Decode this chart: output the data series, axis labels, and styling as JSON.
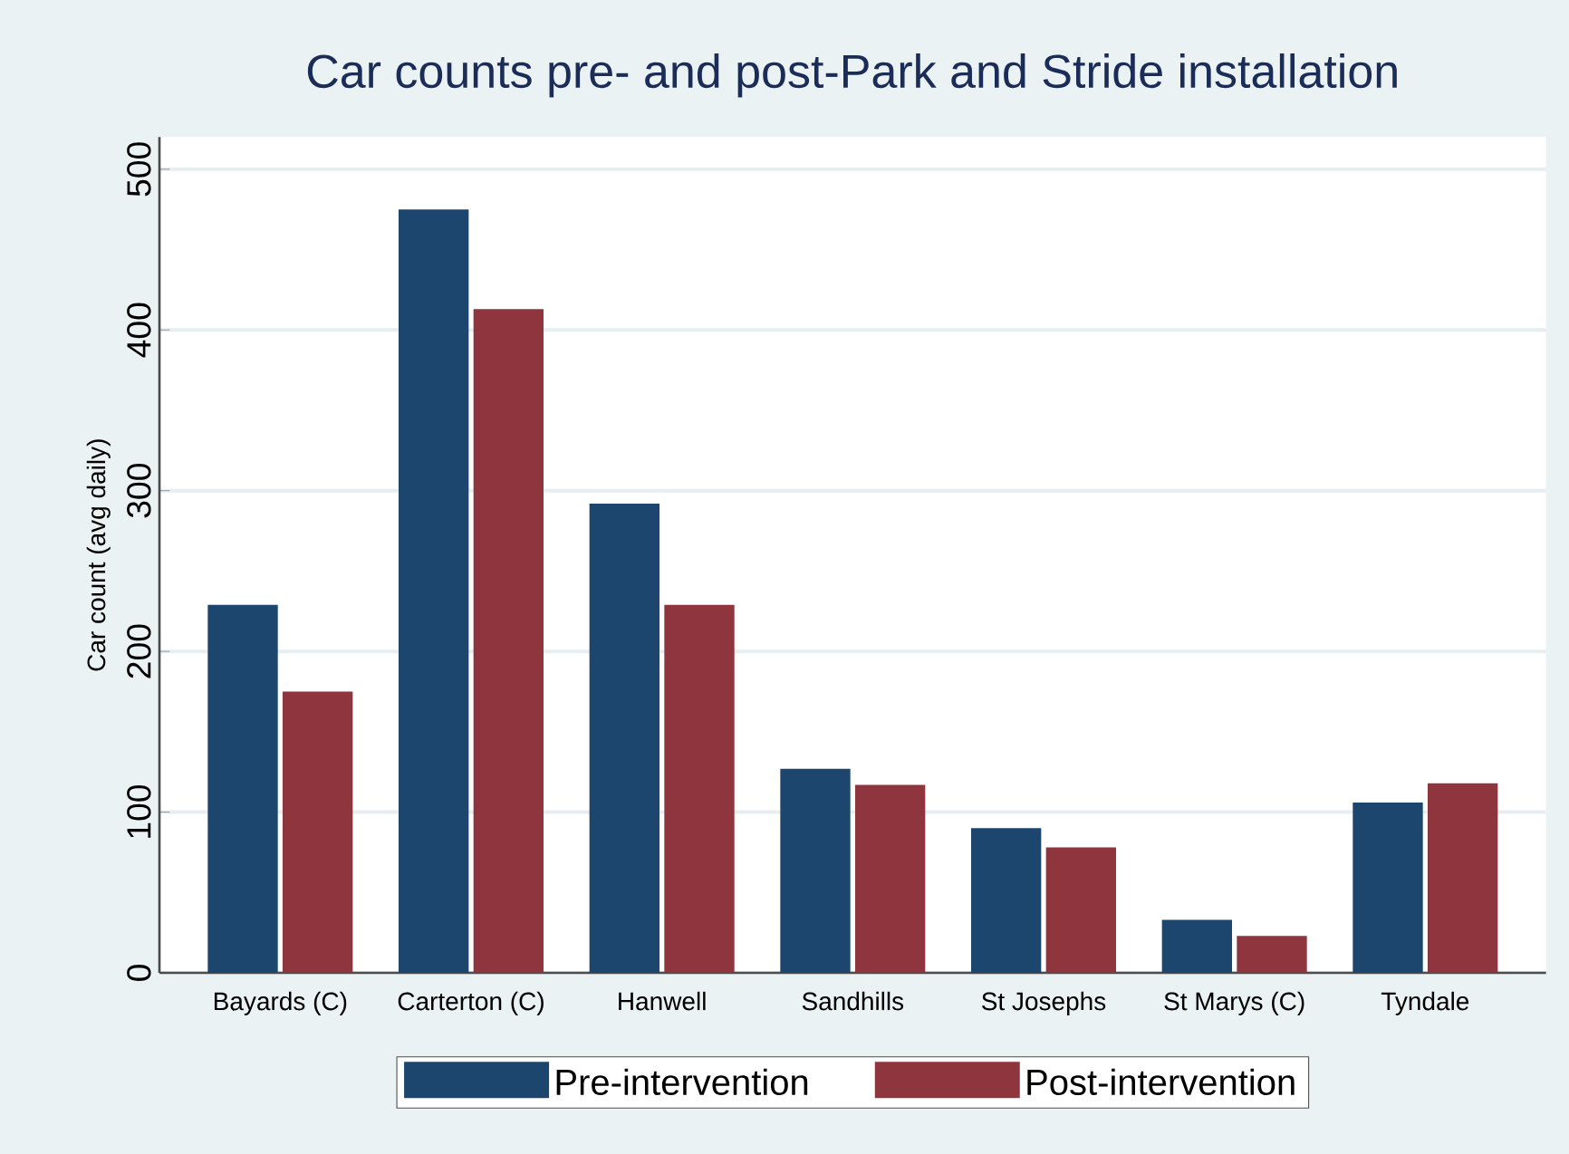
{
  "chart_data": {
    "type": "bar",
    "title": "Car counts pre- and post-Park and Stride installation",
    "ylabel": "Car count (avg daily)",
    "categories": [
      "Bayards (C)",
      "Carterton (C)",
      "Hanwell",
      "Sandhills",
      "St Josephs",
      "St Marys (C)",
      "Tyndale"
    ],
    "series": [
      {
        "name": "Pre-intervention",
        "color": "#1c466e",
        "values": [
          229,
          475,
          292,
          127,
          90,
          33,
          106
        ]
      },
      {
        "name": "Post-intervention",
        "color": "#8e353d",
        "values": [
          175,
          413,
          229,
          117,
          78,
          23,
          118
        ]
      }
    ],
    "ylim": [
      0,
      520
    ],
    "yticks": [
      0,
      100,
      200,
      300,
      400,
      500
    ],
    "grid": "y",
    "legend": "bottom"
  }
}
